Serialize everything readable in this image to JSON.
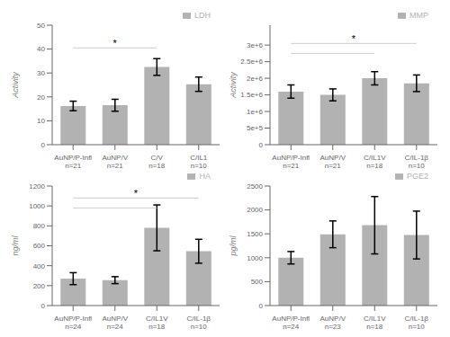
{
  "chart_data": [
    {
      "type": "bar",
      "ylabel": "Activity",
      "categories": [
        "AuNP/P-Infl\nn=21",
        "AuNP/V\nn=21",
        "C/V\nn=18",
        "C/IL1\nn=10"
      ],
      "series": [
        {
          "name": "LDH",
          "color": "#b2b2b2",
          "values": [
            16.2,
            16.5,
            32.5,
            25.3
          ],
          "errors": [
            2.0,
            2.5,
            3.5,
            3.0
          ]
        }
      ],
      "ylim": [
        0,
        50
      ],
      "yticks": [
        0,
        10,
        20,
        30,
        40,
        50
      ],
      "legend": "upper right",
      "annotations": [
        {
          "x1": 0,
          "x2": 2,
          "y": 40.5,
          "text": "*"
        }
      ]
    },
    {
      "type": "bar",
      "ylabel": "Activity",
      "categories": [
        "AuNP/P-Infl\nn=21",
        "AuNP/V\nn=21",
        "C/IL1V\nn=18",
        "C/IL-1β\nn=10"
      ],
      "series": [
        {
          "name": "MMP",
          "color": "#b2b2b2",
          "values": [
            1600000,
            1500000,
            2000000,
            1850000
          ],
          "errors": [
            200000,
            180000,
            200000,
            250000
          ]
        }
      ],
      "ylim": [
        0,
        3600000
      ],
      "yticks": [
        0,
        {
          "value": 500000,
          "label": "5e+5"
        },
        {
          "value": 1000000,
          "label": "1e+6"
        },
        {
          "value": 1500000,
          "label": "1.5e+6"
        },
        {
          "value": 2000000,
          "label": "2e+6"
        },
        {
          "value": 2500000,
          "label": "2.5e+6"
        },
        {
          "value": 3000000,
          "label": "3e+6"
        }
      ],
      "legend": "upper right",
      "annotations": [
        {
          "x1": 0,
          "x2": 2,
          "y": 2750000
        },
        {
          "x1": 0,
          "x2": 3,
          "y": 3050000,
          "text": "*"
        }
      ]
    },
    {
      "type": "bar",
      "ylabel": "ng/ml",
      "categories": [
        "AuNP/P-Infl\nn=24",
        "AuNP/V\nn=24",
        "C/IL1V\nn=18",
        "C/IL-1β\nn=10"
      ],
      "series": [
        {
          "name": "HA",
          "color": "#b2b2b2",
          "values": [
            270,
            255,
            780,
            545
          ],
          "errors": [
            60,
            35,
            230,
            120
          ]
        }
      ],
      "ylim": [
        0,
        1200
      ],
      "yticks": [
        0,
        200,
        400,
        600,
        800,
        1000,
        1200
      ],
      "legend": "upper right",
      "annotations": [
        {
          "x1": 0,
          "x2": 2,
          "y": 980
        },
        {
          "x1": 0,
          "x2": 3,
          "y": 1080,
          "text": "*"
        }
      ]
    },
    {
      "type": "bar",
      "ylabel": "pg/ml",
      "categories": [
        "AuNP/P-Infl\nn=24",
        "AuNP/V\nn=23",
        "C/IL1V\nn=18",
        "C/IL-1β\nn=10"
      ],
      "series": [
        {
          "name": "PGE2",
          "color": "#b2b2b2",
          "values": [
            1000,
            1490,
            1680,
            1475
          ],
          "errors": [
            130,
            280,
            600,
            500
          ]
        }
      ],
      "ylim": [
        0,
        2500
      ],
      "yticks": [
        0,
        500,
        1000,
        1500,
        2000,
        2500
      ],
      "legend": "upper right",
      "annotations": []
    }
  ]
}
